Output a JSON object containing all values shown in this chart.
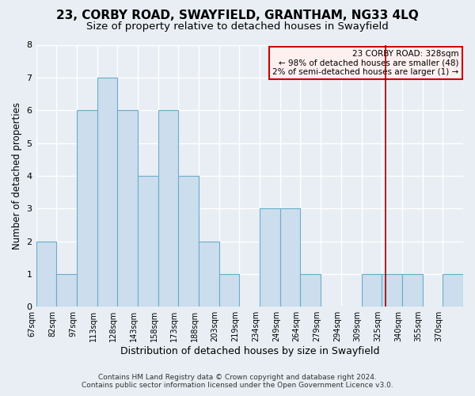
{
  "title": "23, CORBY ROAD, SWAYFIELD, GRANTHAM, NG33 4LQ",
  "subtitle": "Size of property relative to detached houses in Swayfield",
  "xlabel": "Distribution of detached houses by size in Swayfield",
  "ylabel": "Number of detached properties",
  "bin_labels": [
    "67sqm",
    "82sqm",
    "97sqm",
    "113sqm",
    "128sqm",
    "143sqm",
    "158sqm",
    "173sqm",
    "188sqm",
    "203sqm",
    "219sqm",
    "234sqm",
    "249sqm",
    "264sqm",
    "279sqm",
    "294sqm",
    "309sqm",
    "325sqm",
    "340sqm",
    "355sqm",
    "370sqm"
  ],
  "bar_heights": [
    2,
    1,
    6,
    7,
    6,
    4,
    6,
    4,
    2,
    1,
    0,
    3,
    3,
    1,
    0,
    0,
    1,
    1,
    1,
    0,
    1
  ],
  "bar_color": "#ccdded",
  "bar_edgecolor": "#6aaccc",
  "ylim": [
    0,
    8
  ],
  "yticks": [
    0,
    1,
    2,
    3,
    4,
    5,
    6,
    7,
    8
  ],
  "vline_x": 17.2,
  "vline_color": "#990000",
  "annotation_title": "23 CORBY ROAD: 328sqm",
  "annotation_line1": "← 98% of detached houses are smaller (48)",
  "annotation_line2": "2% of semi-detached houses are larger (1) →",
  "annotation_box_facecolor": "#fff0f0",
  "annotation_box_edgecolor": "#cc0000",
  "footer1": "Contains HM Land Registry data © Crown copyright and database right 2024.",
  "footer2": "Contains public sector information licensed under the Open Government Licence v3.0.",
  "background_color": "#e8eef4",
  "grid_color": "#ffffff",
  "title_fontsize": 11,
  "subtitle_fontsize": 9.5,
  "ylabel_fontsize": 8.5,
  "xlabel_fontsize": 9
}
